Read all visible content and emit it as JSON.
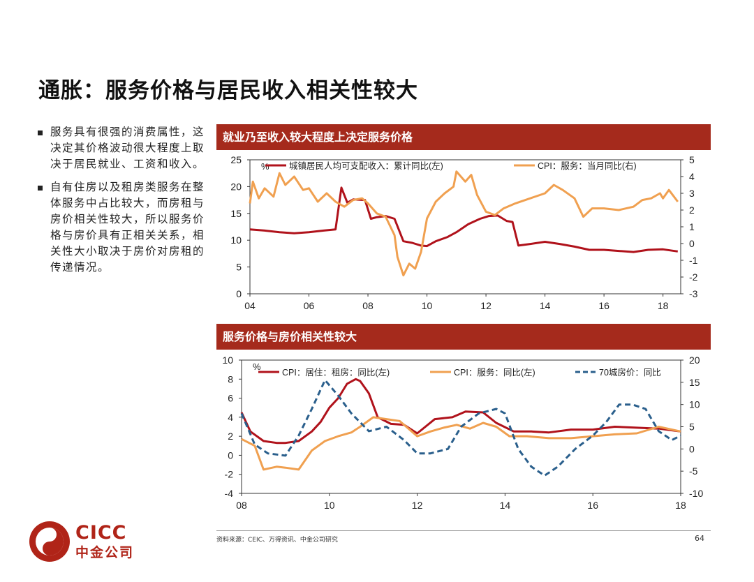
{
  "title": "通胀：服务价格与居民收入相关性较大",
  "bullets": [
    "服务具有很强的消费属性，这决定其价格波动很大程度上取决于居民就业、工资和收入。",
    "自有住房以及租房类服务在整体服务中占比较大，而房租与房价相关性较大，所以服务价格与房价具有正相关关系，相关性大小取决于房价对房租的传递情况。"
  ],
  "source": "资料来源：CEIC、万得资讯、中金公司研究",
  "page_number": "64",
  "logo": {
    "name": "CICC",
    "cn": "中金公司"
  },
  "colors": {
    "red": "#b0121b",
    "orange": "#f0a050",
    "blue": "#2a5f8c",
    "banner": "#a52a1c"
  },
  "chart_data": [
    {
      "type": "line",
      "title": "就业乃至收入较大程度上决定服务价格",
      "unit_label": "%",
      "x_ticks": [
        "04",
        "06",
        "08",
        "10",
        "12",
        "14",
        "16",
        "18"
      ],
      "x_range": [
        2004,
        2018.6
      ],
      "y_left": {
        "range": [
          0,
          25
        ],
        "ticks": [
          0,
          5,
          10,
          15,
          20,
          25
        ]
      },
      "y_right": {
        "range": [
          -3,
          5
        ],
        "ticks": [
          -3,
          -2,
          -1,
          0,
          1,
          2,
          3,
          4,
          5
        ]
      },
      "series": [
        {
          "name": "城镇居民人均可支配收入：累计同比(左)",
          "axis": "left",
          "color": "#b0121b",
          "x": [
            2004.0,
            2004.5,
            2005.0,
            2005.5,
            2006.0,
            2006.5,
            2006.9,
            2007.1,
            2007.3,
            2007.5,
            2007.9,
            2008.1,
            2008.3,
            2008.6,
            2008.9,
            2009.2,
            2009.5,
            2009.8,
            2010.0,
            2010.3,
            2010.7,
            2011.0,
            2011.4,
            2011.8,
            2012.1,
            2012.4,
            2012.7,
            2012.9,
            2013.1,
            2013.5,
            2014.0,
            2014.5,
            2015.0,
            2015.5,
            2016.0,
            2016.5,
            2017.0,
            2017.5,
            2018.0,
            2018.5
          ],
          "y": [
            12,
            11.8,
            11.5,
            11.3,
            11.5,
            11.8,
            12,
            19.8,
            17,
            17.6,
            17.5,
            14,
            14.3,
            14.5,
            14,
            9.8,
            9.5,
            9,
            8.9,
            9.8,
            10.6,
            11.5,
            13,
            14,
            14.5,
            14.6,
            13.6,
            13.4,
            9,
            9.3,
            9.7,
            9.3,
            8.8,
            8.2,
            8.2,
            8,
            7.8,
            8.2,
            8.3,
            7.9
          ]
        },
        {
          "name": "CPI：服务：当月同比(右)",
          "axis": "right",
          "color": "#f0a050",
          "x": [
            2004.0,
            2004.1,
            2004.3,
            2004.5,
            2004.8,
            2005.0,
            2005.2,
            2005.5,
            2005.8,
            2006.0,
            2006.3,
            2006.6,
            2006.9,
            2007.2,
            2007.5,
            2007.8,
            2008.0,
            2008.3,
            2008.6,
            2008.9,
            2009.0,
            2009.2,
            2009.4,
            2009.6,
            2009.8,
            2010.0,
            2010.3,
            2010.6,
            2010.9,
            2011.0,
            2011.3,
            2011.5,
            2011.7,
            2012.0,
            2012.3,
            2012.6,
            2013.0,
            2013.5,
            2014.0,
            2014.3,
            2014.6,
            2015.0,
            2015.3,
            2015.6,
            2016.0,
            2016.5,
            2017.0,
            2017.3,
            2017.6,
            2017.9,
            2018.0,
            2018.2,
            2018.5
          ],
          "y": [
            2.4,
            3.7,
            2.7,
            3.3,
            2.8,
            4.2,
            3.5,
            4.0,
            3.2,
            3.3,
            2.5,
            3.0,
            2.5,
            2.2,
            2.6,
            2.7,
            2.4,
            1.8,
            1.6,
            0.5,
            -0.8,
            -1.9,
            -1.2,
            -1.5,
            -0.5,
            1.5,
            2.5,
            3.0,
            3.4,
            4.3,
            3.7,
            4.1,
            2.9,
            1.9,
            1.7,
            2.1,
            2.4,
            2.7,
            3.0,
            3.5,
            3.2,
            2.7,
            1.6,
            2.1,
            2.1,
            2.0,
            2.2,
            2.6,
            2.7,
            3.0,
            2.7,
            3.2,
            2.5
          ]
        }
      ]
    },
    {
      "type": "line",
      "title": "服务价格与房价相关性较大",
      "unit_label": "%",
      "x_ticks": [
        "08",
        "10",
        "12",
        "14",
        "16",
        "18"
      ],
      "x_range": [
        2008,
        2018
      ],
      "y_left": {
        "range": [
          -4,
          10
        ],
        "ticks": [
          -4,
          -2,
          0,
          2,
          4,
          6,
          8,
          10
        ]
      },
      "y_right": {
        "range": [
          -10,
          20
        ],
        "ticks": [
          -10,
          -5,
          0,
          5,
          10,
          15,
          20
        ]
      },
      "series": [
        {
          "name": "CPI：居住：租房：同比(左)",
          "axis": "left",
          "color": "#b0121b",
          "dash": false,
          "x": [
            2008.0,
            2008.2,
            2008.5,
            2008.8,
            2009.0,
            2009.3,
            2009.6,
            2009.8,
            2010.0,
            2010.2,
            2010.4,
            2010.6,
            2010.7,
            2010.9,
            2011.1,
            2011.4,
            2011.7,
            2012.0,
            2012.4,
            2012.8,
            2013.1,
            2013.5,
            2013.8,
            2014.2,
            2014.6,
            2015.0,
            2015.5,
            2016.0,
            2016.5,
            2017.0,
            2017.5,
            2018.0
          ],
          "y": [
            4.5,
            2.5,
            1.5,
            1.3,
            1.3,
            1.5,
            2.5,
            3.5,
            5.0,
            6.0,
            7.5,
            8.0,
            7.8,
            6.5,
            4.0,
            3.3,
            3.2,
            2.3,
            3.8,
            4.0,
            4.6,
            4.5,
            3.4,
            2.5,
            2.5,
            2.4,
            2.7,
            2.7,
            3.0,
            2.9,
            2.8,
            2.5
          ]
        },
        {
          "name": "CPI：服务：同比(左)",
          "axis": "left",
          "color": "#f0a050",
          "dash": false,
          "x": [
            2008.0,
            2008.3,
            2008.5,
            2008.8,
            2009.0,
            2009.3,
            2009.6,
            2009.9,
            2010.2,
            2010.5,
            2010.7,
            2011.0,
            2011.3,
            2011.6,
            2012.0,
            2012.3,
            2012.6,
            2012.9,
            2013.2,
            2013.5,
            2013.8,
            2014.1,
            2014.5,
            2015.0,
            2015.5,
            2016.0,
            2016.5,
            2017.0,
            2017.5,
            2018.0
          ],
          "y": [
            1.7,
            1.0,
            -1.5,
            -1.2,
            -1.3,
            -1.5,
            0.5,
            1.5,
            2.0,
            2.4,
            3.0,
            4.0,
            3.8,
            3.6,
            2.0,
            2.5,
            2.9,
            3.2,
            2.8,
            3.4,
            3.0,
            2.0,
            2.0,
            1.8,
            1.8,
            2.0,
            2.2,
            2.3,
            3.0,
            2.5
          ]
        },
        {
          "name": "70城房价：同比",
          "axis": "right",
          "color": "#2a5f8c",
          "dash": true,
          "x": [
            2008.0,
            2008.3,
            2008.6,
            2009.0,
            2009.3,
            2009.6,
            2009.9,
            2010.2,
            2010.5,
            2010.9,
            2011.3,
            2011.7,
            2012.0,
            2012.3,
            2012.7,
            2013.0,
            2013.4,
            2013.8,
            2014.0,
            2014.3,
            2014.6,
            2014.9,
            2015.2,
            2015.6,
            2016.0,
            2016.3,
            2016.6,
            2016.9,
            2017.2,
            2017.5,
            2017.8,
            2018.0
          ],
          "y": [
            8,
            1,
            -1,
            -1.5,
            3,
            9,
            15.5,
            12,
            8,
            4,
            5,
            2,
            -1,
            -1,
            0,
            5,
            8,
            9,
            8,
            0,
            -4,
            -6,
            -4,
            0,
            3,
            6,
            10,
            10,
            9,
            4,
            2,
            3
          ]
        }
      ]
    }
  ]
}
